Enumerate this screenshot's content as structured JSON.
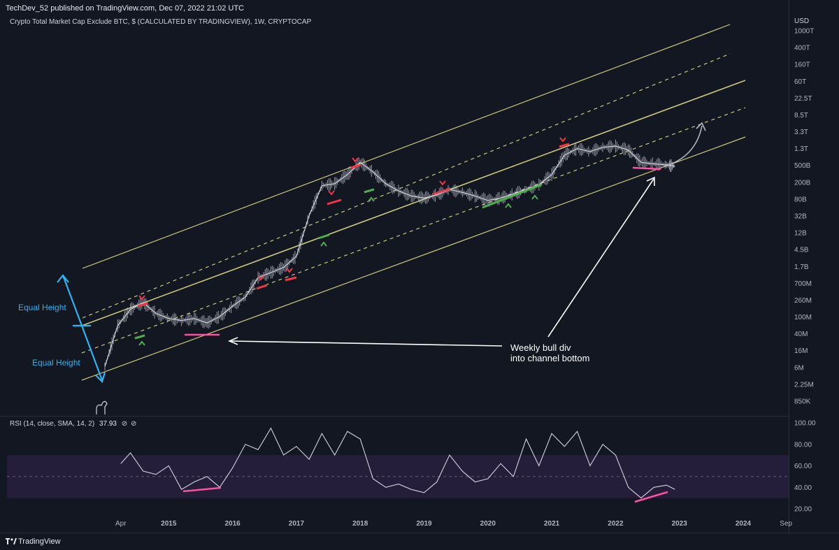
{
  "header": {
    "published": "TechDev_52 published on TradingView.com, Dec 07, 2022 21:02 UTC",
    "symbol": "Crypto Total Market Cap Exclude BTC, $ (CALCULATED BY TRADINGVIEW), 1W, CRYPTOCAP",
    "currency": "USD"
  },
  "footer": {
    "brand": "TradingView"
  },
  "rsi": {
    "label": "RSI (14, close, SMA, 14, 2)",
    "value": "37.93"
  },
  "annotations": {
    "equal_height_top": "Equal Height",
    "equal_height_bottom": "Equal Height",
    "note_line1": "Weekly bull div",
    "note_line2": "into channel bottom"
  },
  "colors": {
    "background": "#131722",
    "price": "#d1d4dc",
    "channel": "#f0e68c",
    "red_marker": "#f23645",
    "green_marker": "#4caf50",
    "pink": "#ff4fa3",
    "cyan": "#29b6f6",
    "rsi_band": "#241e3b"
  },
  "chart_data": [
    {
      "type": "line",
      "title": "Crypto Total Market Cap Exclude BTC, $ (CALCULATED BY TRADINGVIEW), 1W, CRYPTOCAP",
      "yscale": "log",
      "ylabel": "USD",
      "y_ticks": [
        "1000T",
        "400T",
        "160T",
        "60T",
        "22.5T",
        "8.5T",
        "3.3T",
        "1.3T",
        "500B",
        "200B",
        "80B",
        "32B",
        "12B",
        "4.5B",
        "1.7B",
        "700M",
        "260M",
        "100M",
        "40M",
        "16M",
        "6M",
        "2.25M",
        "850K"
      ],
      "x_ticks": [
        "Apr",
        "2015",
        "2016",
        "2017",
        "2018",
        "2019",
        "2020",
        "2021",
        "2022",
        "2023",
        "2024",
        "Sep"
      ],
      "x": [
        2014.0,
        2014.2,
        2014.4,
        2014.6,
        2014.8,
        2015.0,
        2015.2,
        2015.4,
        2015.6,
        2015.8,
        2016.0,
        2016.2,
        2016.4,
        2016.6,
        2016.8,
        2017.0,
        2017.2,
        2017.4,
        2017.6,
        2017.8,
        2018.0,
        2018.2,
        2018.4,
        2018.6,
        2018.8,
        2019.0,
        2019.2,
        2019.4,
        2019.6,
        2019.8,
        2020.0,
        2020.2,
        2020.4,
        2020.6,
        2020.8,
        2021.0,
        2021.2,
        2021.4,
        2021.6,
        2021.8,
        2022.0,
        2022.2,
        2022.4,
        2022.6,
        2022.8,
        2022.93
      ],
      "values": [
        6000000,
        60000000,
        150000000,
        220000000,
        120000000,
        90000000,
        80000000,
        90000000,
        70000000,
        100000000,
        180000000,
        300000000,
        900000000,
        1200000000,
        1600000000,
        3000000000,
        30000000000,
        160000000000,
        180000000000,
        300000000000,
        600000000000,
        350000000000,
        180000000000,
        120000000000,
        90000000000,
        80000000000,
        95000000000,
        130000000000,
        110000000000,
        90000000000,
        70000000000,
        80000000000,
        100000000000,
        130000000000,
        170000000000,
        300000000000,
        900000000000,
        1300000000000,
        1100000000000,
        1400000000000,
        1500000000000,
        1200000000000,
        600000000000,
        550000000000,
        520000000000,
        480000000000
      ],
      "channel_lines": [
        "upper solid",
        "upper dashed",
        "middle solid",
        "lower dashed",
        "lower solid"
      ]
    },
    {
      "type": "line",
      "title": "RSI (14, close, SMA, 14, 2)",
      "ylim": [
        10,
        100
      ],
      "y_ticks": [
        "100.00",
        "80.00",
        "60.00",
        "40.00",
        "20.00"
      ],
      "band": [
        30,
        70
      ],
      "midline": 50,
      "current": 37.93,
      "x": [
        2014.25,
        2014.4,
        2014.6,
        2014.8,
        2015.0,
        2015.2,
        2015.4,
        2015.6,
        2015.8,
        2016.0,
        2016.2,
        2016.4,
        2016.6,
        2016.8,
        2017.0,
        2017.2,
        2017.4,
        2017.6,
        2017.8,
        2018.0,
        2018.2,
        2018.4,
        2018.6,
        2018.8,
        2019.0,
        2019.2,
        2019.4,
        2019.6,
        2019.8,
        2020.0,
        2020.2,
        2020.4,
        2020.6,
        2020.8,
        2021.0,
        2021.2,
        2021.4,
        2021.6,
        2021.8,
        2022.0,
        2022.2,
        2022.4,
        2022.5,
        2022.6,
        2022.8,
        2022.93
      ],
      "values": [
        62,
        72,
        55,
        52,
        60,
        38,
        45,
        50,
        40,
        58,
        80,
        75,
        95,
        70,
        78,
        66,
        90,
        70,
        92,
        85,
        48,
        40,
        43,
        38,
        35,
        45,
        70,
        55,
        45,
        48,
        62,
        50,
        85,
        60,
        90,
        78,
        92,
        60,
        80,
        70,
        40,
        30,
        35,
        40,
        42,
        38
      ]
    }
  ]
}
